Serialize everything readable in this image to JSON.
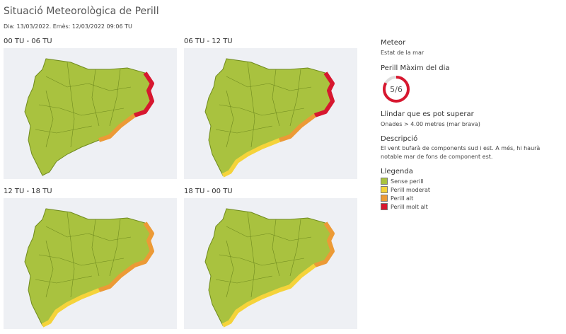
{
  "header": {
    "title": "Situació Meteorològica de Perill",
    "subtitle": "Dia: 13/03/2022. Emès: 12/03/2022 09:06 TU"
  },
  "panels": [
    {
      "label": "00 TU - 06 TU"
    },
    {
      "label": "06 TU - 12 TU"
    },
    {
      "label": "12 TU - 18 TU"
    },
    {
      "label": "18 TU - 00 TU"
    }
  ],
  "sidebar": {
    "meteor": {
      "heading": "Meteor",
      "text": "Estat de la mar"
    },
    "max_danger": {
      "heading": "Perill Màxim del dia",
      "gauge": {
        "label": "5/6",
        "value": 5,
        "max": 6
      }
    },
    "threshold": {
      "heading": "Llindar que es pot superar",
      "text": "Onades > 4.00 metres (mar brava)"
    },
    "description": {
      "heading": "Descripció",
      "text": "El vent bufarà de components sud i est. A més, hi haurà notable mar de fons de component est."
    },
    "legend": {
      "heading": "Llegenda",
      "items": [
        {
          "label": "Sense perill",
          "color": "#a9c23f"
        },
        {
          "label": "Perill moderat",
          "color": "#f5d33a"
        },
        {
          "label": "Perill alt",
          "color": "#ec9a36"
        },
        {
          "label": "Perill molt alt",
          "color": "#d7172f"
        }
      ]
    }
  }
}
